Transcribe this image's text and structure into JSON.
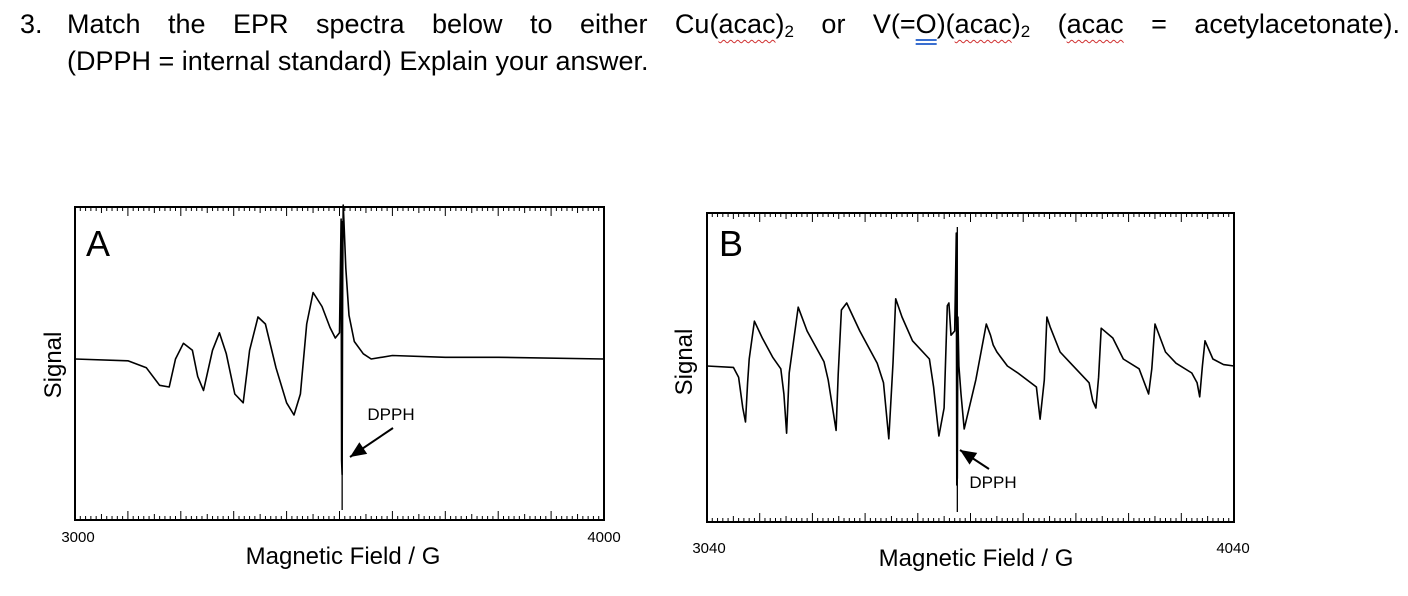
{
  "question": {
    "number": "3.",
    "line1": {
      "a": "Match the EPR spectra below to either Cu(",
      "b": "acac",
      "c": ")",
      "d": "2",
      "e": " or V(=",
      "f": "O",
      "g": ")(",
      "h": "acac",
      "i": ")",
      "j": "2",
      "k": " (",
      "l": "acac",
      "m": " = acetylacetonate)."
    },
    "line2": "(DPPH = internal standard) Explain your answer."
  },
  "chart_data": [
    {
      "type": "line",
      "panel_label": "A",
      "xlabel": "Magnetic Field / G",
      "ylabel": "Signal",
      "xlim": [
        3000,
        4000
      ],
      "x_tick_labels": [
        "3000",
        "4000"
      ],
      "annotation": "DPPH",
      "dpph_field": 3505,
      "grid": false,
      "y_units": "relative (baseline = 0)",
      "series": [
        {
          "x": [
            3000,
            3100,
            3135,
            3160,
            3178,
            3190,
            3205,
            3222,
            3232,
            3243,
            3260,
            3273,
            3286,
            3302,
            3318,
            3330,
            3346,
            3360,
            3380,
            3400,
            3414,
            3426,
            3438,
            3450,
            3467,
            3482,
            3492,
            3500,
            3503,
            3504,
            3505,
            3506,
            3507,
            3508,
            3512,
            3518,
            3528,
            3545,
            3560,
            3600,
            3700,
            3800,
            4000
          ],
          "y": [
            0,
            -0.01,
            -0.05,
            -0.15,
            -0.16,
            0.0,
            0.09,
            0.05,
            -0.1,
            -0.18,
            0.05,
            0.15,
            0.03,
            -0.2,
            -0.25,
            0.05,
            0.24,
            0.2,
            -0.05,
            -0.25,
            -0.32,
            -0.2,
            0.2,
            0.38,
            0.3,
            0.18,
            0.12,
            0.15,
            0.8,
            -0.58,
            -0.66,
            0.5,
            0.88,
            0.82,
            0.52,
            0.25,
            0.1,
            0.03,
            0.0,
            0.02,
            0.01,
            0.01,
            0.0
          ]
        }
      ]
    },
    {
      "type": "line",
      "panel_label": "B",
      "xlabel": "Magnetic Field / G",
      "ylabel": "Signal",
      "xlim": [
        3040,
        4040
      ],
      "x_tick_labels": [
        "3040",
        "4040"
      ],
      "annotation": "DPPH",
      "dpph_field": 3515,
      "grid": false,
      "y_units": "relative (baseline = 0)",
      "series": [
        {
          "x": [
            3040,
            3090,
            3100,
            3108,
            3113,
            3117,
            3120,
            3130,
            3145,
            3165,
            3180,
            3186,
            3191,
            3196,
            3213,
            3230,
            3262,
            3270,
            3285,
            3289,
            3295,
            3305,
            3330,
            3363,
            3375,
            3385,
            3393,
            3398,
            3410,
            3430,
            3462,
            3470,
            3480,
            3490,
            3496,
            3499,
            3503,
            3510,
            3513,
            3514,
            3515,
            3516,
            3518,
            3522,
            3528,
            3550,
            3570,
            3578,
            3583,
            3590,
            3610,
            3630,
            3665,
            3672,
            3680,
            3685,
            3691,
            3710,
            3730,
            3765,
            3772,
            3778,
            3783,
            3788,
            3810,
            3830,
            3860,
            3870,
            3878,
            3884,
            3890,
            3910,
            3930,
            3960,
            3970,
            3975,
            3980,
            3985,
            4000,
            4020,
            4040
          ],
          "y": [
            0,
            -0.01,
            -0.08,
            -0.3,
            -0.4,
            -0.12,
            0.05,
            0.32,
            0.2,
            0.06,
            -0.02,
            -0.2,
            -0.48,
            -0.05,
            0.42,
            0.25,
            0.03,
            -0.1,
            -0.46,
            -0.06,
            0.4,
            0.45,
            0.25,
            0.02,
            -0.12,
            -0.52,
            0.02,
            0.48,
            0.35,
            0.18,
            0.05,
            -0.15,
            -0.5,
            -0.3,
            0.43,
            0.45,
            0.22,
            0.25,
            0.95,
            -0.85,
            -0.8,
            0.35,
            0.0,
            -0.2,
            -0.45,
            -0.1,
            0.3,
            0.22,
            0.15,
            0.1,
            0.0,
            -0.05,
            -0.15,
            -0.38,
            -0.1,
            0.35,
            0.28,
            0.1,
            0.02,
            -0.12,
            -0.25,
            -0.3,
            -0.08,
            0.27,
            0.2,
            0.05,
            -0.02,
            -0.12,
            -0.2,
            -0.02,
            0.3,
            0.1,
            0.02,
            -0.05,
            -0.12,
            -0.22,
            0.0,
            0.18,
            0.05,
            0.01,
            0.0
          ]
        }
      ]
    }
  ]
}
